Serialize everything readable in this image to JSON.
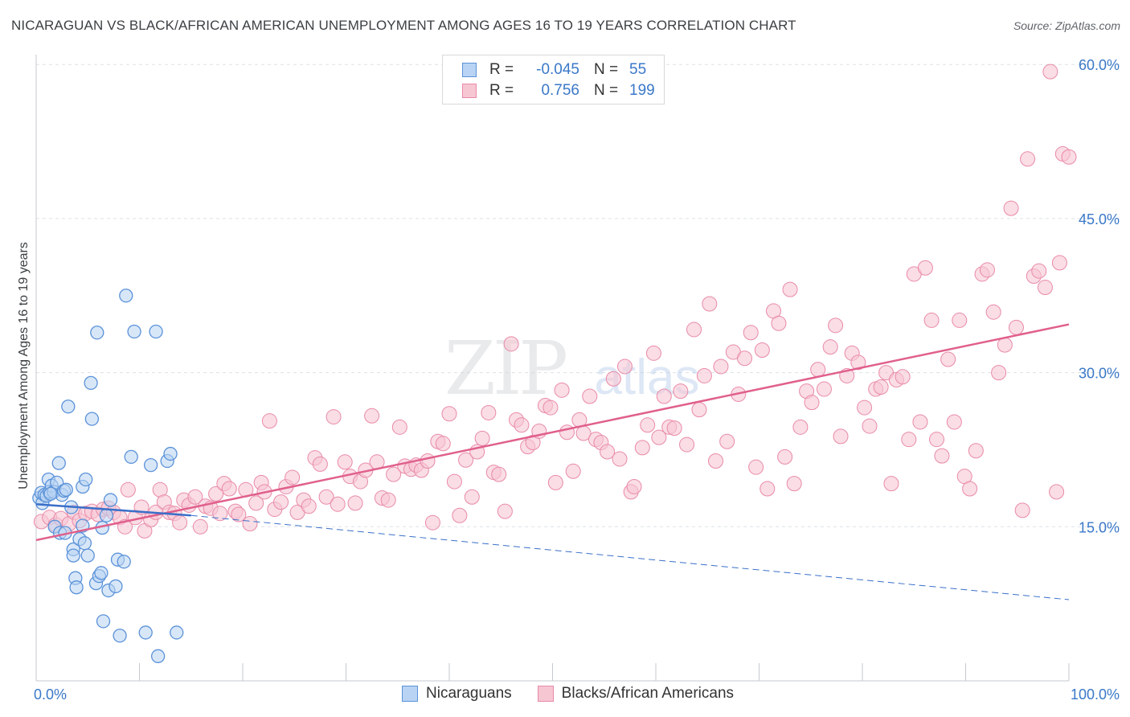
{
  "title": "NICARAGUAN VS BLACK/AFRICAN AMERICAN UNEMPLOYMENT AMONG AGES 16 TO 19 YEARS CORRELATION CHART",
  "source": "Source: ZipAtlas.com",
  "colors": {
    "blue_fill": "#b8d3f3",
    "blue_stroke": "#5b92d9",
    "blue_line": "#3a6fc9",
    "pink_fill": "#f6c6d3",
    "pink_stroke": "#e98aa8",
    "pink_line": "#e0608c",
    "tick_text": "#3a78c8",
    "grid": "#dde1e6"
  },
  "legend_top": {
    "rows": [
      {
        "r_label": "R =",
        "r_value": "-0.045",
        "n_label": "N =",
        "n_value": "55"
      },
      {
        "r_label": "R =",
        "r_value": "0.756",
        "n_label": "N =",
        "n_value": "199"
      }
    ]
  },
  "legend_bottom": [
    "Nicaraguans",
    "Blacks/African Americans"
  ],
  "chart_data": {
    "type": "scatter",
    "title": "NICARAGUAN VS BLACK/AFRICAN AMERICAN UNEMPLOYMENT AMONG AGES 16 TO 19 YEARS CORRELATION CHART",
    "xlabel": "",
    "ylabel": "Unemployment Among Ages 16 to 19 years",
    "xlim": [
      0,
      100
    ],
    "ylim": [
      0,
      60.8
    ],
    "x_tick_labels": [
      "0.0%",
      "100.0%"
    ],
    "y_ticks": [
      15,
      30,
      45,
      60
    ],
    "y_tick_labels": [
      "15.0%",
      "30.0%",
      "45.0%",
      "60.0%"
    ],
    "grid": true,
    "legend_position": "top-center",
    "series": [
      {
        "name": "Nicaraguans",
        "trend": {
          "x": [
            0,
            15
          ],
          "y": [
            17.2,
            16.1
          ]
        },
        "trend_extension": {
          "x": [
            15,
            100
          ],
          "y": [
            16.1,
            7.9
          ]
        },
        "points": [
          [
            0.3,
            17.8
          ],
          [
            0.5,
            18.3
          ],
          [
            0.6,
            17.3
          ],
          [
            0.8,
            18.1
          ],
          [
            1.0,
            18.0
          ],
          [
            1.2,
            19.6
          ],
          [
            1.3,
            18.4
          ],
          [
            1.5,
            19.0
          ],
          [
            1.7,
            18.4
          ],
          [
            1.8,
            15.0
          ],
          [
            2.0,
            19.3
          ],
          [
            2.2,
            21.2
          ],
          [
            2.3,
            14.4
          ],
          [
            2.5,
            18.1
          ],
          [
            2.7,
            18.5
          ],
          [
            2.8,
            14.4
          ],
          [
            3.1,
            26.7
          ],
          [
            3.4,
            16.9
          ],
          [
            3.6,
            12.8
          ],
          [
            3.6,
            12.2
          ],
          [
            3.8,
            10.0
          ],
          [
            3.9,
            9.1
          ],
          [
            4.2,
            13.8
          ],
          [
            4.5,
            18.9
          ],
          [
            4.5,
            15.1
          ],
          [
            4.7,
            13.4
          ],
          [
            4.8,
            19.6
          ],
          [
            5.0,
            12.2
          ],
          [
            5.3,
            29.0
          ],
          [
            5.4,
            25.5
          ],
          [
            5.8,
            9.5
          ],
          [
            5.9,
            33.9
          ],
          [
            6.1,
            10.2
          ],
          [
            6.3,
            10.5
          ],
          [
            6.4,
            14.9
          ],
          [
            6.5,
            5.8
          ],
          [
            6.8,
            16.1
          ],
          [
            7.0,
            8.8
          ],
          [
            7.2,
            17.6
          ],
          [
            7.7,
            9.2
          ],
          [
            7.9,
            11.8
          ],
          [
            8.1,
            4.4
          ],
          [
            8.5,
            11.6
          ],
          [
            8.7,
            37.5
          ],
          [
            9.2,
            21.8
          ],
          [
            9.5,
            34.0
          ],
          [
            10.6,
            4.7
          ],
          [
            11.1,
            21.0
          ],
          [
            11.6,
            34.0
          ],
          [
            11.8,
            2.4
          ],
          [
            12.7,
            21.4
          ],
          [
            13.0,
            22.1
          ],
          [
            13.6,
            4.7
          ],
          [
            1.4,
            18.2
          ],
          [
            2.9,
            18.6
          ]
        ]
      },
      {
        "name": "Blacks/African Americans",
        "trend": {
          "x": [
            0,
            100
          ],
          "y": [
            13.7,
            34.7
          ]
        },
        "points": [
          [
            0.5,
            15.5
          ],
          [
            1.3,
            15.9
          ],
          [
            1.9,
            15.2
          ],
          [
            2.4,
            15.8
          ],
          [
            3.2,
            15.3
          ],
          [
            3.7,
            16.4
          ],
          [
            4.2,
            15.6
          ],
          [
            4.8,
            16.3
          ],
          [
            5.4,
            16.5
          ],
          [
            6.0,
            16.2
          ],
          [
            6.5,
            16.7
          ],
          [
            7.0,
            16.8
          ],
          [
            7.5,
            16.4
          ],
          [
            8.1,
            15.9
          ],
          [
            8.6,
            15.0
          ],
          [
            8.9,
            18.6
          ],
          [
            9.6,
            15.9
          ],
          [
            10.2,
            16.9
          ],
          [
            10.5,
            14.6
          ],
          [
            11.1,
            15.7
          ],
          [
            11.6,
            16.4
          ],
          [
            12.0,
            18.6
          ],
          [
            12.4,
            17.4
          ],
          [
            12.9,
            16.4
          ],
          [
            13.4,
            16.3
          ],
          [
            13.9,
            15.4
          ],
          [
            14.3,
            17.6
          ],
          [
            14.8,
            17.1
          ],
          [
            15.4,
            17.9
          ],
          [
            15.9,
            15.0
          ],
          [
            16.4,
            17.0
          ],
          [
            16.9,
            16.8
          ],
          [
            17.4,
            18.2
          ],
          [
            17.8,
            16.3
          ],
          [
            18.2,
            19.2
          ],
          [
            18.7,
            18.7
          ],
          [
            19.3,
            16.5
          ],
          [
            19.6,
            16.2
          ],
          [
            20.3,
            18.6
          ],
          [
            20.7,
            15.3
          ],
          [
            21.3,
            17.3
          ],
          [
            21.8,
            19.3
          ],
          [
            22.1,
            18.4
          ],
          [
            22.6,
            25.3
          ],
          [
            23.1,
            16.7
          ],
          [
            23.7,
            17.4
          ],
          [
            24.2,
            18.9
          ],
          [
            24.8,
            19.8
          ],
          [
            25.3,
            16.4
          ],
          [
            25.9,
            17.6
          ],
          [
            26.4,
            17.0
          ],
          [
            27.0,
            21.7
          ],
          [
            27.5,
            21.1
          ],
          [
            28.1,
            17.9
          ],
          [
            28.8,
            25.7
          ],
          [
            29.2,
            17.2
          ],
          [
            29.9,
            21.3
          ],
          [
            30.4,
            19.9
          ],
          [
            30.9,
            17.3
          ],
          [
            31.4,
            19.4
          ],
          [
            31.9,
            20.5
          ],
          [
            32.5,
            25.8
          ],
          [
            33.0,
            21.3
          ],
          [
            33.5,
            17.8
          ],
          [
            34.1,
            17.6
          ],
          [
            34.6,
            20.1
          ],
          [
            35.2,
            24.7
          ],
          [
            35.7,
            20.9
          ],
          [
            36.3,
            20.6
          ],
          [
            36.8,
            21.0
          ],
          [
            37.3,
            20.5
          ],
          [
            37.9,
            21.4
          ],
          [
            38.4,
            15.4
          ],
          [
            38.9,
            23.3
          ],
          [
            39.4,
            23.1
          ],
          [
            40.0,
            26.0
          ],
          [
            40.5,
            19.4
          ],
          [
            41.0,
            16.1
          ],
          [
            41.6,
            21.5
          ],
          [
            42.2,
            17.9
          ],
          [
            42.7,
            22.3
          ],
          [
            43.2,
            23.6
          ],
          [
            43.8,
            26.1
          ],
          [
            44.3,
            20.3
          ],
          [
            44.8,
            20.1
          ],
          [
            45.4,
            16.5
          ],
          [
            46.0,
            32.8
          ],
          [
            46.5,
            25.4
          ],
          [
            47.0,
            24.9
          ],
          [
            47.6,
            22.8
          ],
          [
            48.1,
            23.2
          ],
          [
            48.7,
            24.3
          ],
          [
            49.3,
            26.8
          ],
          [
            49.8,
            26.6
          ],
          [
            50.3,
            19.3
          ],
          [
            50.9,
            28.3
          ],
          [
            51.4,
            24.2
          ],
          [
            52.0,
            20.4
          ],
          [
            52.6,
            25.4
          ],
          [
            53.0,
            24.1
          ],
          [
            53.6,
            27.7
          ],
          [
            54.2,
            23.5
          ],
          [
            54.7,
            23.2
          ],
          [
            55.3,
            22.3
          ],
          [
            55.9,
            29.4
          ],
          [
            56.5,
            21.6
          ],
          [
            57.0,
            30.6
          ],
          [
            57.6,
            18.4
          ],
          [
            57.9,
            18.9
          ],
          [
            58.7,
            22.7
          ],
          [
            59.2,
            24.9
          ],
          [
            59.8,
            31.9
          ],
          [
            60.3,
            23.7
          ],
          [
            60.8,
            27.7
          ],
          [
            61.3,
            24.7
          ],
          [
            61.8,
            24.6
          ],
          [
            62.4,
            28.2
          ],
          [
            63.0,
            23.0
          ],
          [
            63.7,
            34.2
          ],
          [
            64.2,
            26.4
          ],
          [
            64.7,
            29.7
          ],
          [
            65.2,
            36.7
          ],
          [
            65.8,
            21.4
          ],
          [
            66.3,
            30.6
          ],
          [
            66.9,
            23.3
          ],
          [
            67.5,
            32.0
          ],
          [
            68.0,
            27.9
          ],
          [
            68.6,
            31.4
          ],
          [
            69.2,
            33.9
          ],
          [
            69.7,
            20.8
          ],
          [
            70.3,
            32.2
          ],
          [
            70.8,
            18.7
          ],
          [
            71.4,
            36.0
          ],
          [
            71.9,
            34.8
          ],
          [
            72.5,
            21.8
          ],
          [
            73.0,
            38.1
          ],
          [
            73.4,
            19.2
          ],
          [
            74.0,
            24.7
          ],
          [
            74.6,
            28.2
          ],
          [
            75.1,
            27.1
          ],
          [
            75.7,
            30.3
          ],
          [
            76.3,
            28.4
          ],
          [
            76.9,
            32.5
          ],
          [
            77.4,
            34.6
          ],
          [
            77.9,
            23.8
          ],
          [
            78.5,
            29.7
          ],
          [
            79.0,
            31.9
          ],
          [
            79.6,
            31.0
          ],
          [
            80.2,
            26.6
          ],
          [
            80.7,
            24.8
          ],
          [
            81.3,
            28.4
          ],
          [
            81.8,
            28.6
          ],
          [
            82.3,
            30.0
          ],
          [
            82.8,
            19.2
          ],
          [
            83.3,
            29.3
          ],
          [
            83.9,
            29.6
          ],
          [
            84.5,
            23.5
          ],
          [
            85.0,
            39.6
          ],
          [
            85.6,
            25.2
          ],
          [
            86.1,
            40.2
          ],
          [
            86.7,
            35.1
          ],
          [
            87.2,
            23.5
          ],
          [
            87.7,
            21.9
          ],
          [
            88.3,
            31.3
          ],
          [
            88.9,
            25.2
          ],
          [
            89.4,
            35.1
          ],
          [
            89.9,
            19.9
          ],
          [
            90.4,
            18.7
          ],
          [
            91.0,
            22.4
          ],
          [
            91.6,
            39.6
          ],
          [
            92.1,
            40.0
          ],
          [
            92.7,
            35.9
          ],
          [
            93.2,
            30.0
          ],
          [
            93.8,
            32.7
          ],
          [
            94.4,
            46.0
          ],
          [
            94.9,
            34.4
          ],
          [
            95.5,
            16.6
          ],
          [
            96.0,
            50.8
          ],
          [
            96.6,
            39.4
          ],
          [
            97.1,
            39.9
          ],
          [
            97.7,
            38.3
          ],
          [
            98.2,
            59.3
          ],
          [
            98.8,
            18.4
          ],
          [
            99.1,
            40.7
          ],
          [
            99.4,
            51.3
          ],
          [
            100.0,
            51.0
          ]
        ]
      }
    ]
  }
}
